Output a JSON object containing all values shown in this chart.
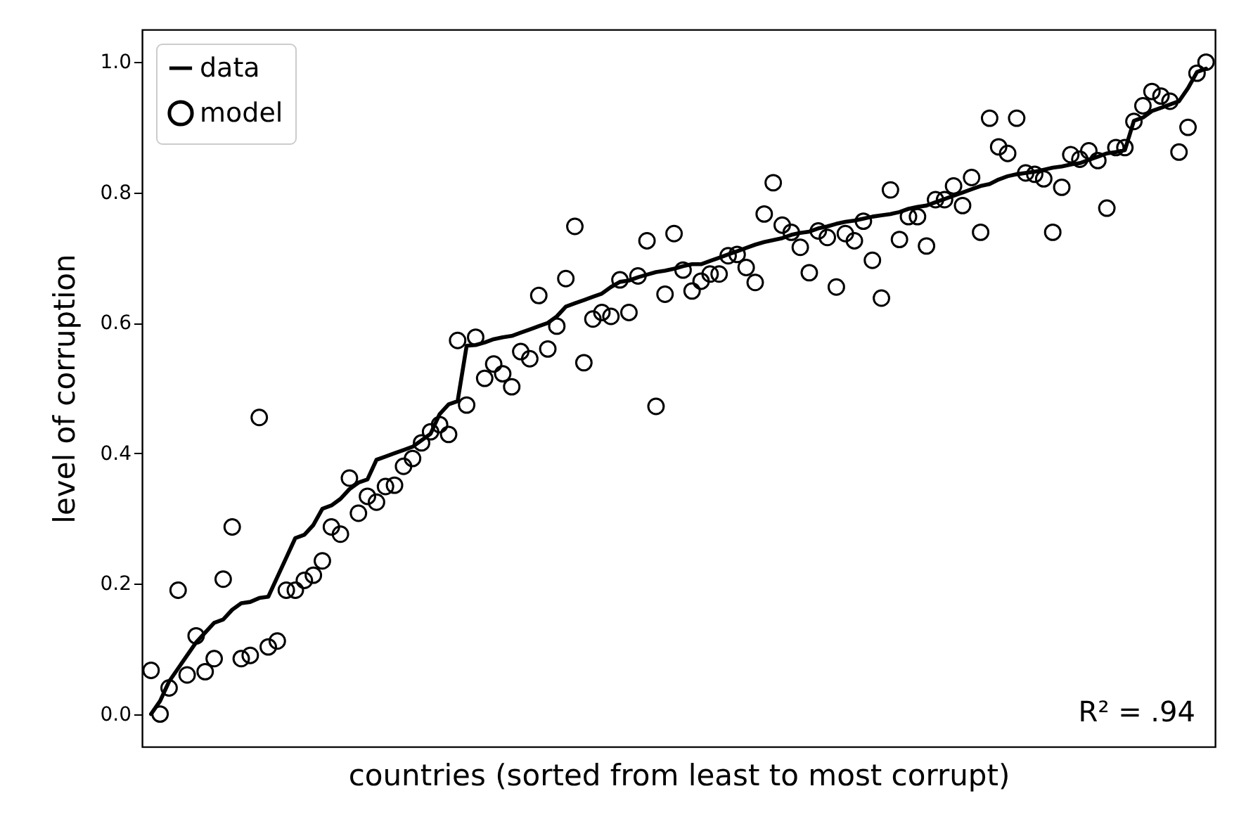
{
  "chart_data": {
    "type": "line",
    "xlabel": "countries (sorted from least to most corrupt)",
    "ylabel": "level of corruption",
    "categories": [
      null,
      null,
      null,
      null,
      null,
      null,
      null,
      null,
      null,
      null,
      null,
      null,
      null,
      null,
      null,
      null,
      null,
      null,
      null,
      null,
      null,
      null,
      null,
      null,
      null,
      null,
      null,
      null,
      null,
      null,
      null,
      null,
      null,
      null,
      null,
      null,
      null,
      null,
      null,
      null,
      null,
      null,
      null,
      null,
      null,
      null,
      null,
      null,
      null,
      null,
      null,
      null,
      null,
      null,
      null,
      null,
      null,
      null,
      null,
      null,
      null,
      null,
      null,
      null,
      null,
      null,
      null,
      null,
      null,
      null,
      null,
      null,
      null,
      null,
      null,
      null,
      null,
      null,
      null,
      null,
      null,
      null,
      null,
      null,
      null,
      null,
      null,
      null,
      null,
      null,
      null,
      null,
      null,
      null,
      null,
      null,
      null,
      null,
      null,
      null,
      null,
      null,
      null,
      null,
      null,
      null,
      null,
      null,
      null,
      null,
      null,
      null,
      null,
      null,
      null,
      null,
      null,
      null
    ],
    "series": [
      {
        "name": "data",
        "marker": "none",
        "color": "#000000",
        "values": [
          0.0,
          0.02,
          0.05,
          0.07,
          0.09,
          0.11,
          0.125,
          0.14,
          0.145,
          0.16,
          0.17,
          0.172,
          0.178,
          0.18,
          0.21,
          0.24,
          0.27,
          0.275,
          0.29,
          0.315,
          0.32,
          0.33,
          0.345,
          0.355,
          0.36,
          0.39,
          0.395,
          0.4,
          0.405,
          0.41,
          0.42,
          0.43,
          0.46,
          0.475,
          0.48,
          0.565,
          0.566,
          0.57,
          0.575,
          0.578,
          0.58,
          0.585,
          0.59,
          0.595,
          0.6,
          0.61,
          0.625,
          0.63,
          0.635,
          0.64,
          0.645,
          0.655,
          0.663,
          0.665,
          0.67,
          0.674,
          0.678,
          0.68,
          0.683,
          0.687,
          0.69,
          0.69,
          0.695,
          0.7,
          0.705,
          0.71,
          0.715,
          0.72,
          0.724,
          0.727,
          0.73,
          0.735,
          0.738,
          0.74,
          0.745,
          0.748,
          0.752,
          0.755,
          0.757,
          0.76,
          0.763,
          0.765,
          0.767,
          0.77,
          0.775,
          0.778,
          0.78,
          0.785,
          0.79,
          0.795,
          0.8,
          0.805,
          0.81,
          0.813,
          0.82,
          0.825,
          0.828,
          0.83,
          0.832,
          0.835,
          0.838,
          0.84,
          0.843,
          0.845,
          0.85,
          0.855,
          0.86,
          0.862,
          0.865,
          0.91,
          0.915,
          0.925,
          0.93,
          0.935,
          0.94,
          0.96,
          0.985,
          0.99
        ]
      },
      {
        "name": "model",
        "type": "scatter",
        "marker": "circle",
        "color": "#000000",
        "values": [
          0.067,
          0.0,
          0.04,
          0.19,
          0.06,
          0.12,
          0.065,
          0.085,
          0.207,
          0.287,
          0.085,
          0.09,
          0.455,
          0.103,
          0.112,
          0.19,
          0.19,
          0.205,
          0.213,
          0.235,
          0.287,
          0.276,
          0.362,
          0.308,
          0.334,
          0.325,
          0.349,
          0.351,
          0.38,
          0.392,
          0.416,
          0.433,
          0.444,
          0.429,
          0.573,
          0.474,
          0.578,
          0.515,
          0.537,
          0.522,
          0.502,
          0.556,
          0.545,
          0.642,
          0.56,
          0.595,
          0.668,
          0.748,
          0.539,
          0.606,
          0.616,
          0.61,
          0.666,
          0.616,
          0.672,
          0.726,
          0.472,
          0.644,
          0.737,
          0.681,
          0.649,
          0.664,
          0.675,
          0.675,
          0.703,
          0.705,
          0.685,
          0.662,
          0.767,
          0.815,
          0.75,
          0.739,
          0.716,
          0.677,
          0.741,
          0.731,
          0.655,
          0.737,
          0.726,
          0.756,
          0.696,
          0.638,
          0.804,
          0.728,
          0.763,
          0.763,
          0.718,
          0.789,
          0.789,
          0.81,
          0.78,
          0.823,
          0.739,
          0.914,
          0.87,
          0.86,
          0.914,
          0.83,
          0.828,
          0.821,
          0.739,
          0.808,
          0.858,
          0.851,
          0.864,
          0.849,
          0.776,
          0.869,
          0.869,
          0.909,
          0.933,
          0.955,
          0.948,
          0.94,
          0.862,
          0.9,
          0.983,
          1.0
        ]
      }
    ],
    "ylim": [
      -0.05,
      1.05
    ],
    "yticks": [
      {
        "value": 0,
        "label": "0.0"
      },
      0.2,
      0.4,
      0.6,
      0.8,
      {
        "value": 1,
        "label": "1.0"
      }
    ],
    "tick_labels": "y",
    "grid": false,
    "legend": "top left",
    "line_style": "solid",
    "annotations": [
      "R² = .94"
    ]
  }
}
